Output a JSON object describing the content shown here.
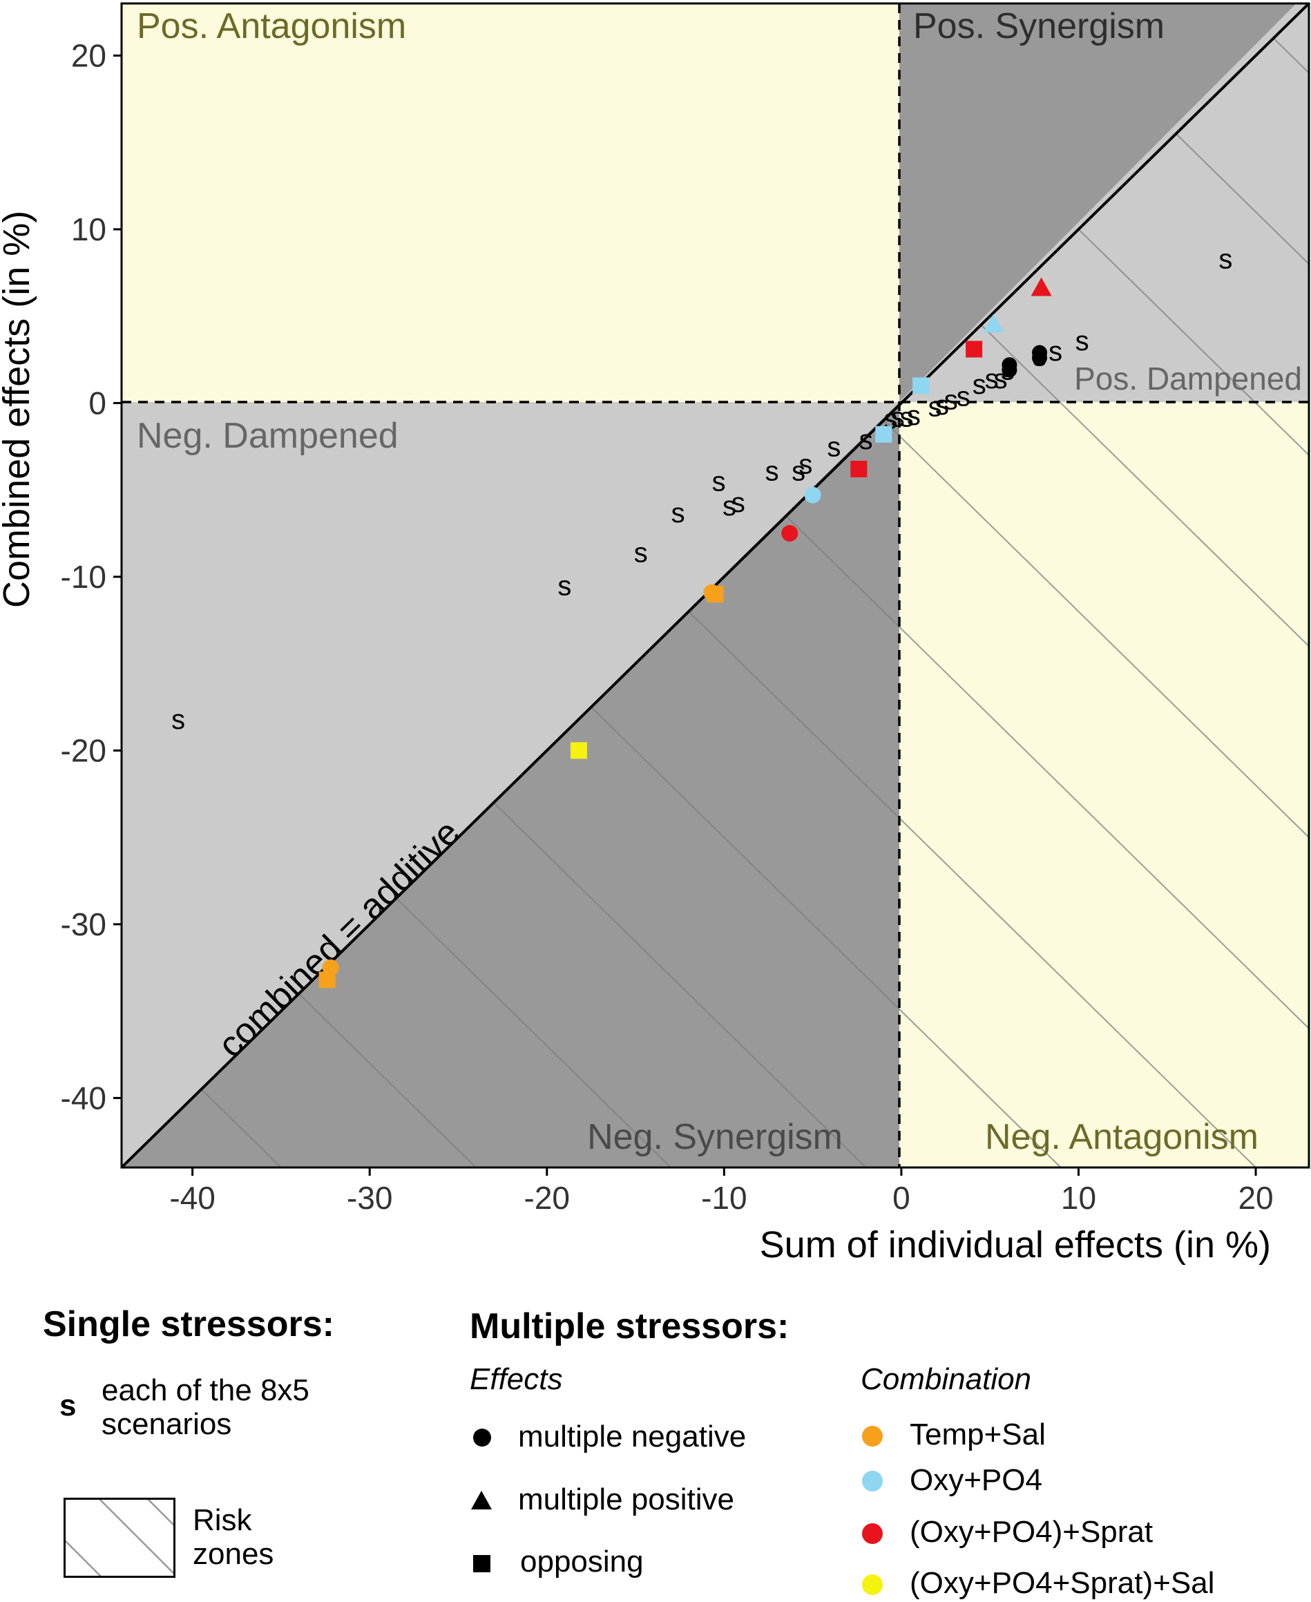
{
  "chart_data": {
    "type": "scatter",
    "xlabel": "Sum of individual effects (in %)",
    "ylabel": "Combined effects (in %)",
    "xlim": [
      -44,
      23
    ],
    "ylim": [
      -44,
      23
    ],
    "xticks": [
      -40,
      -30,
      -20,
      -10,
      0,
      10,
      20
    ],
    "yticks": [
      -40,
      -30,
      -20,
      -10,
      0,
      10,
      20
    ],
    "diagonal_label": "combined = additive",
    "zone_labels": {
      "pos_antagonism": "Pos. Antagonism",
      "pos_synergism": "Pos. Synergism",
      "pos_dampened": "Pos. Dampened",
      "neg_dampened": "Neg. Dampened",
      "neg_synergism": "Neg. Synergism",
      "neg_antagonism": "Neg. Antagonism"
    },
    "single_marker": "s",
    "single_stressors": [
      {
        "x": -40.8,
        "y": -18.2
      },
      {
        "x": -19.0,
        "y": -10.5
      },
      {
        "x": -14.7,
        "y": -8.6
      },
      {
        "x": -12.6,
        "y": -6.3
      },
      {
        "x": -10.3,
        "y": -4.5
      },
      {
        "x": -9.7,
        "y": -5.9
      },
      {
        "x": -9.2,
        "y": -5.7
      },
      {
        "x": -7.3,
        "y": -3.9
      },
      {
        "x": -5.8,
        "y": -3.9
      },
      {
        "x": -5.4,
        "y": -3.5
      },
      {
        "x": -3.8,
        "y": -2.5
      },
      {
        "x": -2.0,
        "y": -2.1
      },
      {
        "x": -0.6,
        "y": -0.9
      },
      {
        "x": -0.2,
        "y": -0.8
      },
      {
        "x": 0.3,
        "y": -0.8
      },
      {
        "x": 0.7,
        "y": -0.7
      },
      {
        "x": 1.9,
        "y": -0.2
      },
      {
        "x": 2.3,
        "y": -0.1
      },
      {
        "x": 2.8,
        "y": 0.2
      },
      {
        "x": 3.5,
        "y": 0.4
      },
      {
        "x": 4.4,
        "y": 1.1
      },
      {
        "x": 5.1,
        "y": 1.4
      },
      {
        "x": 5.6,
        "y": 1.4
      },
      {
        "x": 6.0,
        "y": 1.9
      },
      {
        "x": 7.8,
        "y": 2.7
      },
      {
        "x": 7.8,
        "y": 3.0
      },
      {
        "x": 8.7,
        "y": 3.0
      },
      {
        "x": 10.2,
        "y": 3.6
      },
      {
        "x": 18.3,
        "y": 8.3
      }
    ],
    "multiple_black": [
      {
        "x": 6.1,
        "y": 1.9
      },
      {
        "x": 6.1,
        "y": 2.2
      },
      {
        "x": 7.8,
        "y": 2.6
      },
      {
        "x": 7.8,
        "y": 2.9
      }
    ],
    "series": [
      {
        "name": "Temp+Sal",
        "color": "#f7a01b",
        "points": [
          {
            "x": -32.2,
            "y": -32.5,
            "shape": "circle"
          },
          {
            "x": -32.4,
            "y": -33.2,
            "shape": "square"
          },
          {
            "x": -10.7,
            "y": -10.9,
            "shape": "circle"
          },
          {
            "x": -10.5,
            "y": -11.0,
            "shape": "square"
          }
        ]
      },
      {
        "name": "Oxy+PO4",
        "color": "#8fd6f0",
        "points": [
          {
            "x": 5.2,
            "y": 4.5,
            "shape": "triangle"
          },
          {
            "x": 1.1,
            "y": 1.0,
            "shape": "square"
          },
          {
            "x": -1.0,
            "y": -1.8,
            "shape": "square"
          },
          {
            "x": -5.0,
            "y": -5.3,
            "shape": "circle"
          }
        ]
      },
      {
        "name": "(Oxy+PO4)+Sprat",
        "color": "#e8141d",
        "points": [
          {
            "x": 7.9,
            "y": 6.6,
            "shape": "triangle"
          },
          {
            "x": 4.1,
            "y": 3.1,
            "shape": "square"
          },
          {
            "x": -2.4,
            "y": -3.8,
            "shape": "square"
          },
          {
            "x": -6.3,
            "y": -7.5,
            "shape": "circle"
          }
        ]
      },
      {
        "name": "(Oxy+PO4+Sprat)+Sal",
        "color": "#f6f20f",
        "points": [
          {
            "x": -18.2,
            "y": -20.0,
            "shape": "square"
          }
        ]
      }
    ]
  },
  "legend": {
    "single_title": "Single stressors:",
    "single_symbol": "s",
    "single_desc_line1": "each of the 8x5",
    "single_desc_line2": "scenarios",
    "risk_line1": "Risk",
    "risk_line2": "zones",
    "multiple_title": "Multiple stressors:",
    "effects_title": "Effects",
    "effects": [
      "multiple negative",
      "multiple positive",
      "opposing"
    ],
    "combination_title": "Combination",
    "combinations": [
      "Temp+Sal",
      "Oxy+PO4",
      "(Oxy+PO4)+Sprat",
      "(Oxy+PO4+Sprat)+Sal"
    ],
    "combination_colors": [
      "#f7a01b",
      "#8fd6f0",
      "#e8141d",
      "#f6f20f"
    ]
  }
}
